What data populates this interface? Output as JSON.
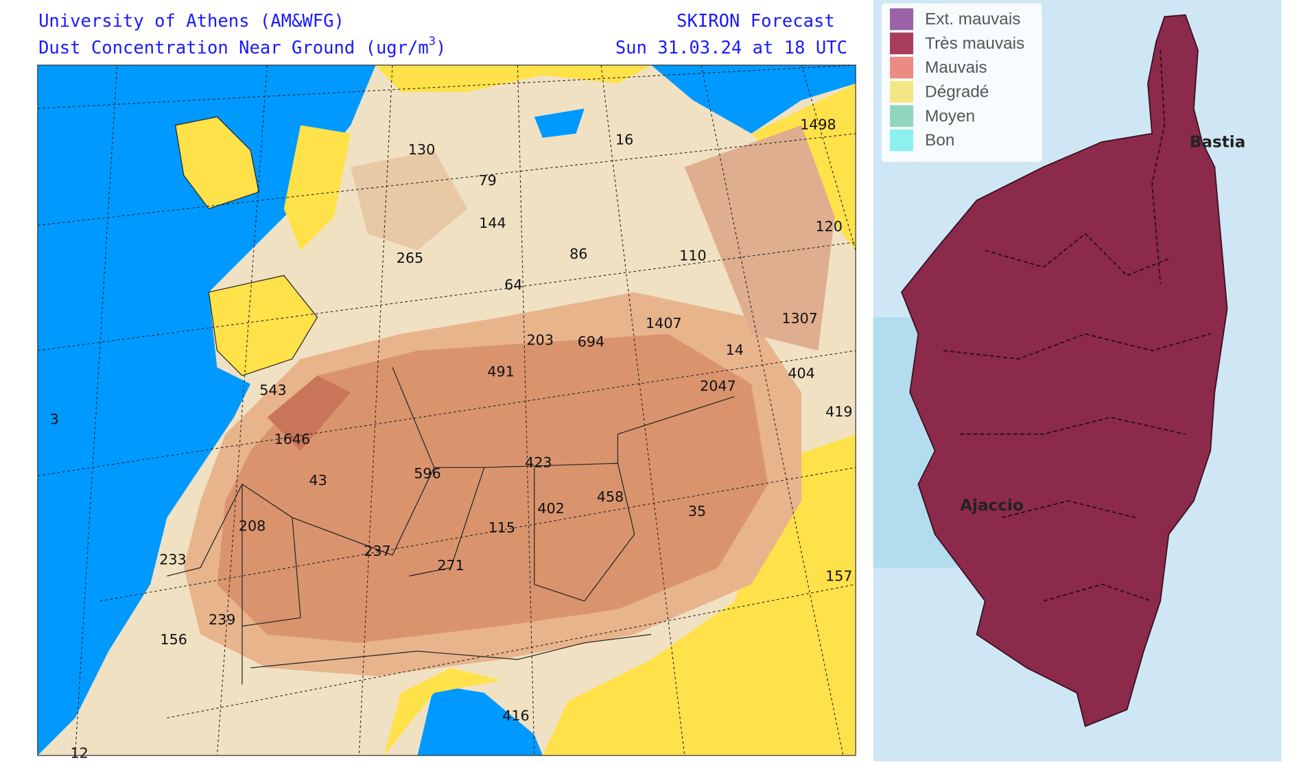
{
  "left_panel": {
    "header": {
      "org": "University of Athens (AM&WFG)",
      "product": "SKIRON Forecast",
      "field": "Dust Concentration Near Ground (ugr/m",
      "unit_exponent": "3",
      "field_close": ")",
      "valid": "Sun 31.03.24 at 18 UTC"
    },
    "map_labels": [
      1498,
      16,
      130,
      79,
      144,
      120,
      265,
      86,
      110,
      64,
      1307,
      1407,
      203,
      694,
      14,
      491,
      404,
      2047,
      543,
      419,
      3,
      1646,
      423,
      43,
      596,
      458,
      402,
      35,
      208,
      115,
      237,
      233,
      271,
      157,
      239,
      156,
      416,
      12
    ]
  },
  "right_panel": {
    "legend": [
      {
        "label": "Ext. mauvais",
        "color": "#9a63a8"
      },
      {
        "label": "Très mauvais",
        "color": "#a83e5c"
      },
      {
        "label": "Mauvais",
        "color": "#ee8a84"
      },
      {
        "label": "Dégradé",
        "color": "#f2e784"
      },
      {
        "label": "Moyen",
        "color": "#8fd6bf"
      },
      {
        "label": "Bon",
        "color": "#8cf0ee"
      }
    ],
    "cities": [
      "Bastia",
      "Ajaccio"
    ]
  }
}
